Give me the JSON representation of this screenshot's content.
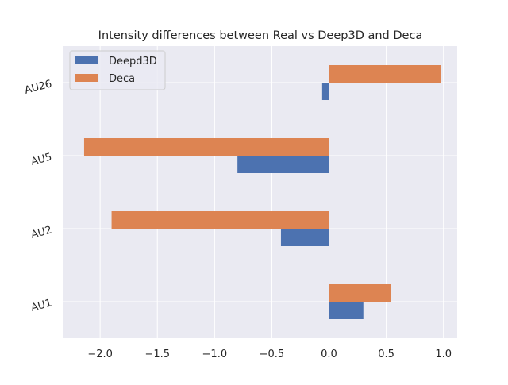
{
  "chart_data": {
    "type": "bar",
    "orientation": "horizontal",
    "title": "Intensity differences between Real vs Deep3D and Deca",
    "xlabel": "",
    "ylabel": "",
    "categories": [
      "AU1",
      "AU2",
      "AU5",
      "AU26"
    ],
    "series": [
      {
        "name": "Deepd3D",
        "color": "#4c72b0",
        "values": [
          0.3,
          -0.42,
          -0.8,
          -0.06
        ]
      },
      {
        "name": "Deca",
        "color": "#dd8452",
        "values": [
          0.54,
          -1.9,
          -2.14,
          0.98
        ]
      }
    ],
    "xlim": [
      -2.32,
      1.12
    ],
    "xticks": [
      -2.0,
      -1.5,
      -1.0,
      -0.5,
      0.0,
      0.5,
      1.0
    ],
    "xtick_labels": [
      "−2.0",
      "−1.5",
      "−1.0",
      "−0.5",
      "0.0",
      "0.5",
      "1.0"
    ],
    "grid": true,
    "legend_position": "upper-left",
    "colors": {
      "background": "#eaeaf2",
      "grid": "#ffffff"
    }
  }
}
